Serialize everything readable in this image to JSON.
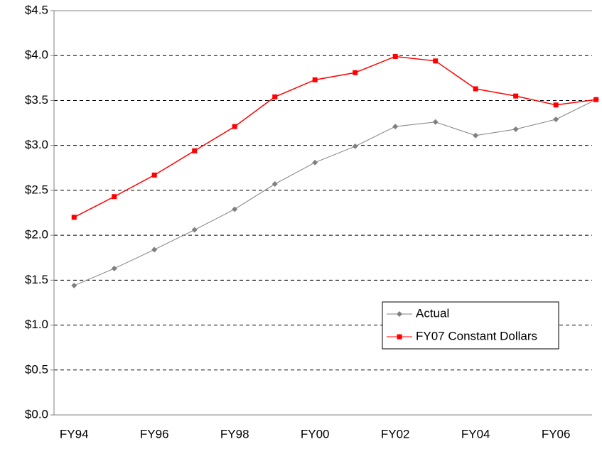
{
  "chart_data": {
    "type": "line",
    "categories": [
      "FY94",
      null,
      "FY96",
      null,
      "FY98",
      null,
      "FY00",
      null,
      "FY02",
      null,
      "FY04",
      null,
      "FY06",
      null
    ],
    "series": [
      {
        "name": "Actual",
        "color": "#808080",
        "marker": "diamond",
        "values": [
          1.44,
          1.63,
          1.84,
          2.06,
          2.29,
          2.57,
          2.81,
          2.99,
          3.21,
          3.26,
          3.11,
          3.18,
          3.29,
          3.51
        ]
      },
      {
        "name": "FY07 Constant Dollars",
        "color": "#ff0000",
        "marker": "square",
        "values": [
          2.2,
          2.43,
          2.67,
          2.94,
          3.21,
          3.54,
          3.73,
          3.81,
          3.99,
          3.94,
          3.63,
          3.55,
          3.45,
          3.51
        ]
      }
    ],
    "ylim": [
      0,
      4.5
    ],
    "yticks": [
      {
        "value": 0,
        "label": "$0.0"
      },
      {
        "value": 0.5,
        "label": "$0.5"
      },
      {
        "value": 1,
        "label": "$1.0"
      },
      {
        "value": 1.5,
        "label": "$1.5"
      },
      {
        "value": 2,
        "label": "$2.0"
      },
      {
        "value": 2.5,
        "label": "$2.5"
      },
      {
        "value": 3,
        "label": "$3.0"
      },
      {
        "value": 3.5,
        "label": "$3.5"
      },
      {
        "value": 4,
        "label": "$4.0"
      },
      {
        "value": 4.5,
        "label": "$4.5"
      }
    ],
    "grid": true
  }
}
